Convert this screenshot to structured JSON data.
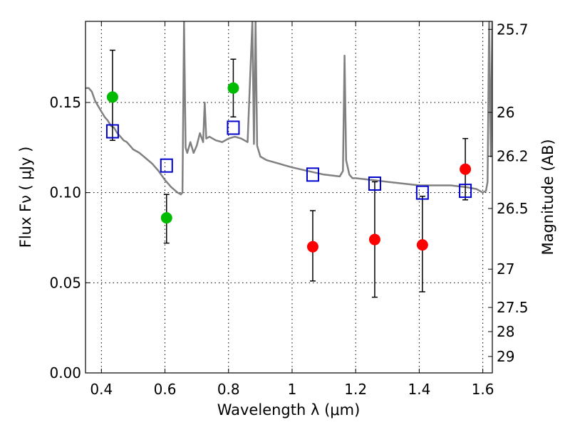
{
  "chart_data": {
    "type": "scatter",
    "xlabel": "Wavelength  λ (μm)",
    "ylabel": "Flux  Fν ( μJy )",
    "y2label": "Magnitude (AB)",
    "xlim": [
      0.35,
      1.63
    ],
    "ylim": [
      0.0,
      0.195
    ],
    "grid": true,
    "x_ticks": [
      {
        "value": 0.4,
        "label": "0.4"
      },
      {
        "value": 0.6,
        "label": "0.6"
      },
      {
        "value": 0.8,
        "label": "0.8"
      },
      {
        "value": 1.0,
        "label": "1"
      },
      {
        "value": 1.2,
        "label": "1.2"
      },
      {
        "value": 1.4,
        "label": "1.4"
      },
      {
        "value": 1.6,
        "label": "1.6"
      }
    ],
    "y_ticks": [
      {
        "value": 0.0,
        "label": "0.00"
      },
      {
        "value": 0.05,
        "label": "0.05"
      },
      {
        "value": 0.1,
        "label": "0.10"
      },
      {
        "value": 0.15,
        "label": "0.15"
      }
    ],
    "y2_ticks": [
      {
        "mag": 25.7,
        "label": "25.7"
      },
      {
        "mag": 26,
        "label": "26"
      },
      {
        "mag": 26.2,
        "label": "26.2"
      },
      {
        "mag": 26.5,
        "label": "26.5"
      },
      {
        "mag": 27,
        "label": "27"
      },
      {
        "mag": 27.5,
        "label": "27.5"
      },
      {
        "mag": 28,
        "label": "28"
      },
      {
        "mag": 29,
        "label": "29"
      }
    ],
    "series": [
      {
        "color": "#808080",
        "kind": "line",
        "x": [
          0.35,
          0.36,
          0.37,
          0.38,
          0.39,
          0.4,
          0.41,
          0.42,
          0.43,
          0.44,
          0.45,
          0.46,
          0.47,
          0.48,
          0.49,
          0.5,
          0.52,
          0.54,
          0.56,
          0.58,
          0.6,
          0.62,
          0.64,
          0.65,
          0.655,
          0.66,
          0.665,
          0.67,
          0.68,
          0.69,
          0.7,
          0.71,
          0.72,
          0.725,
          0.73,
          0.74,
          0.75,
          0.76,
          0.78,
          0.8,
          0.82,
          0.84,
          0.86,
          0.875,
          0.88,
          0.885,
          0.89,
          0.9,
          0.92,
          0.94,
          0.96,
          0.98,
          1.0,
          1.05,
          1.1,
          1.15,
          1.16,
          1.165,
          1.17,
          1.18,
          1.19,
          1.2,
          1.25,
          1.3,
          1.35,
          1.4,
          1.45,
          1.5,
          1.55,
          1.58,
          1.6,
          1.61,
          1.615,
          1.62,
          1.625,
          1.63
        ],
        "y": [
          0.158,
          0.158,
          0.156,
          0.151,
          0.148,
          0.145,
          0.142,
          0.14,
          0.137,
          0.136,
          0.133,
          0.131,
          0.129,
          0.128,
          0.126,
          0.124,
          0.122,
          0.119,
          0.116,
          0.112,
          0.107,
          0.103,
          0.1,
          0.099,
          0.1,
          0.195,
          0.125,
          0.122,
          0.128,
          0.122,
          0.126,
          0.133,
          0.128,
          0.15,
          0.13,
          0.131,
          0.13,
          0.129,
          0.128,
          0.13,
          0.131,
          0.13,
          0.128,
          0.195,
          0.127,
          0.195,
          0.126,
          0.12,
          0.118,
          0.117,
          0.116,
          0.115,
          0.114,
          0.112,
          0.11,
          0.109,
          0.112,
          0.176,
          0.118,
          0.11,
          0.108,
          0.108,
          0.107,
          0.106,
          0.105,
          0.104,
          0.104,
          0.104,
          0.103,
          0.102,
          0.1,
          0.101,
          0.106,
          0.195,
          0.12,
          0.195
        ]
      },
      {
        "color": "#00bb00",
        "kind": "points",
        "points": [
          {
            "x": 0.435,
            "y": 0.153,
            "lo": 0.129,
            "hi": 0.179
          },
          {
            "x": 0.605,
            "y": 0.086,
            "lo": 0.072,
            "hi": 0.099
          },
          {
            "x": 0.815,
            "y": 0.158,
            "lo": 0.142,
            "hi": 0.174
          }
        ]
      },
      {
        "color": "#ff0000",
        "kind": "points",
        "points": [
          {
            "x": 1.065,
            "y": 0.07,
            "lo": 0.051,
            "hi": 0.09
          },
          {
            "x": 1.26,
            "y": 0.074,
            "lo": 0.042,
            "hi": 0.106
          },
          {
            "x": 1.41,
            "y": 0.071,
            "lo": 0.045,
            "hi": 0.098
          },
          {
            "x": 1.545,
            "y": 0.113,
            "lo": 0.096,
            "hi": 0.13
          }
        ]
      },
      {
        "color": "#0000cc",
        "kind": "squares",
        "points": [
          {
            "x": 0.435,
            "y": 0.134
          },
          {
            "x": 0.605,
            "y": 0.115
          },
          {
            "x": 0.815,
            "y": 0.136
          },
          {
            "x": 1.065,
            "y": 0.11
          },
          {
            "x": 1.26,
            "y": 0.105
          },
          {
            "x": 1.41,
            "y": 0.1
          },
          {
            "x": 1.545,
            "y": 0.101
          }
        ]
      }
    ]
  }
}
